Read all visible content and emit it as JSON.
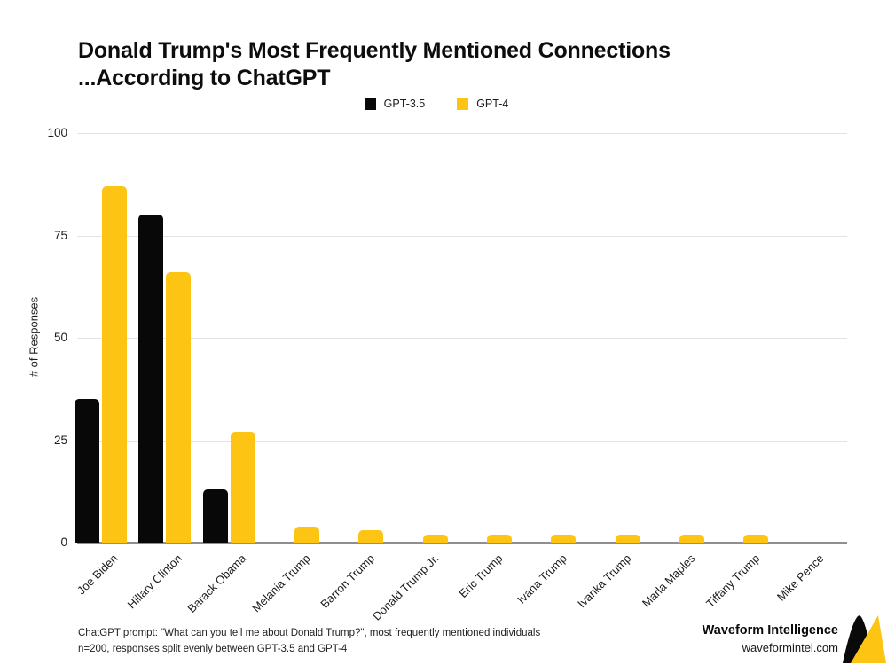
{
  "title": {
    "line1": "Donald Trump's Most Frequently Mentioned Connections",
    "line2": "...According to ChatGPT"
  },
  "chart_data": {
    "type": "bar",
    "title": "Donald Trump's Most Frequently Mentioned Connections ...According to ChatGPT",
    "categories": [
      "Joe Biden",
      "Hillary Clinton",
      "Barack Obama",
      "Melania Trump",
      "Barron Trump",
      "Donald Trump Jr.",
      "Eric Trump",
      "Ivana Trump",
      "Ivanka Trump",
      "Marla Maples",
      "Tiffany Trump",
      "Mike Pence"
    ],
    "series": [
      {
        "name": "GPT-3.5",
        "color": "#080808",
        "values": [
          35,
          80,
          13,
          0,
          0,
          0,
          0,
          0,
          0,
          0,
          0,
          0
        ]
      },
      {
        "name": "GPT-4",
        "color": "#FDC413",
        "values": [
          87,
          66,
          27,
          4,
          3,
          2,
          2,
          2,
          2,
          2,
          2,
          0
        ]
      }
    ],
    "xlabel": "",
    "ylabel": "# of Responses",
    "yticks": [
      0,
      25,
      50,
      75,
      100
    ],
    "ylim": [
      0,
      100
    ],
    "grid": true,
    "legend_position": "top-center",
    "x_tick_rotation_deg": 45
  },
  "footnote": {
    "line1": "ChatGPT prompt: \"What can you tell me about Donald Trump?\", most frequently mentioned individuals",
    "line2": "n=200, responses split evenly between GPT-3.5 and GPT-4"
  },
  "brand": {
    "name": "Waveform Intelligence",
    "url": "waveformintel.com",
    "logo_colors": {
      "peak": "#0a0a0a",
      "triangle": "#FDC413"
    }
  },
  "colors": {
    "background": "#ffffff",
    "gridline": "#e3e3e3",
    "axis_line": "#8f8f8f",
    "text": "#1c1c1c"
  }
}
